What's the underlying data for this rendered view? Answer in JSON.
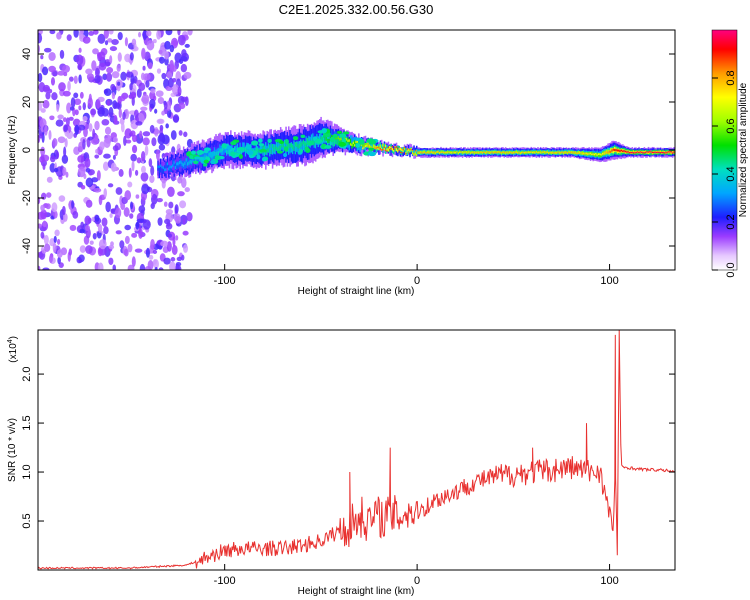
{
  "title": "C2E1.2025.332.00.56.G30",
  "colors": {
    "background": "#ffffff",
    "axis": "#000000",
    "snr_line": "#e8312f",
    "spectrogram_low": "#ffffff",
    "spectrogram_mid": "#7a2cff",
    "spectrogram_high": "#ff0000"
  },
  "chart_data": [
    {
      "type": "heatmap",
      "name": "spectrogram",
      "xlabel": "Height of straight line (km)",
      "ylabel": "Frequency (Hz)",
      "xlim": [
        -197,
        134
      ],
      "ylim": [
        -50,
        50
      ],
      "xticks": [
        -100,
        0,
        100
      ],
      "yticks": [
        -40,
        -20,
        0,
        20,
        40
      ],
      "xtick_labels": [
        "-100",
        "0",
        "100"
      ],
      "ytick_labels": [
        "-40",
        "-20",
        "0",
        "20",
        "40"
      ],
      "colorbar": {
        "label": "Normalized spectral amplitude",
        "range": [
          0.0,
          1.0
        ],
        "ticks": [
          0.0,
          0.2,
          0.4,
          0.6,
          0.8
        ],
        "tick_labels": [
          "0.0",
          "0.2",
          "0.4",
          "0.6",
          "0.8"
        ]
      },
      "noise_region_x": [
        -197,
        -118
      ],
      "signal_band": {
        "x": [
          -135,
          -120,
          -100,
          -80,
          -60,
          -50,
          -40,
          -30,
          -20,
          -10,
          0,
          20,
          40,
          60,
          80,
          95,
          102,
          110,
          134
        ],
        "center_hz": [
          -8,
          -5,
          0,
          0,
          2,
          5,
          4,
          2,
          1,
          0,
          -1,
          -1,
          -1,
          -1,
          -1,
          -2,
          0,
          -1,
          -1
        ],
        "width_hz": [
          8,
          12,
          14,
          14,
          16,
          16,
          10,
          7,
          5,
          4,
          4,
          4,
          4,
          4,
          4,
          6,
          8,
          4,
          4
        ],
        "amplitude": [
          0.3,
          0.35,
          0.4,
          0.45,
          0.45,
          0.45,
          0.6,
          0.7,
          0.85,
          0.9,
          0.8,
          0.75,
          0.8,
          0.75,
          0.8,
          0.7,
          0.9,
          0.95,
          0.95
        ]
      }
    },
    {
      "type": "line",
      "name": "snr",
      "xlabel": "Height of straight line (km)",
      "ylabel": "SNR (10 * v/v)",
      "yscale_label": "(x10",
      "yscale_exponent": "4",
      "xlim": [
        -197,
        134
      ],
      "ylim": [
        0,
        2.45
      ],
      "xticks": [
        -100,
        0,
        100
      ],
      "yticks": [
        0.5,
        1.0,
        1.5,
        2.0
      ],
      "xtick_labels": [
        "-100",
        "0",
        "100"
      ],
      "ytick_labels": [
        "0.5",
        "1.0",
        "1.5",
        "2.0"
      ],
      "series": [
        {
          "name": "SNR",
          "x": [
            -197,
            -150,
            -120,
            -110,
            -100,
            -90,
            -80,
            -70,
            -60,
            -50,
            -40,
            -35,
            -30,
            -25,
            -20,
            -15,
            -10,
            -5,
            0,
            5,
            10,
            20,
            30,
            40,
            50,
            60,
            70,
            80,
            90,
            95,
            100,
            102,
            103,
            104,
            105,
            106,
            108,
            115,
            125,
            134
          ],
          "y": [
            0.02,
            0.02,
            0.05,
            0.12,
            0.2,
            0.22,
            0.22,
            0.22,
            0.25,
            0.3,
            0.4,
            0.45,
            0.55,
            0.5,
            0.55,
            0.55,
            0.55,
            0.6,
            0.6,
            0.65,
            0.72,
            0.8,
            0.9,
            0.95,
            0.98,
            1.0,
            1.02,
            1.05,
            1.0,
            1.02,
            0.55,
            0.4,
            1.1,
            0.2,
            2.3,
            1.05,
            1.05,
            1.03,
            1.02,
            1.01
          ],
          "spikes": [
            {
              "x": -35,
              "y": 1.0
            },
            {
              "x": -14,
              "y": 1.25
            },
            {
              "x": 60,
              "y": 1.25
            },
            {
              "x": 88,
              "y": 1.5
            },
            {
              "x": 103,
              "y": 2.4
            },
            {
              "x": 105,
              "y": 2.45
            },
            {
              "x": 104,
              "y": 0.15
            }
          ]
        }
      ]
    }
  ]
}
